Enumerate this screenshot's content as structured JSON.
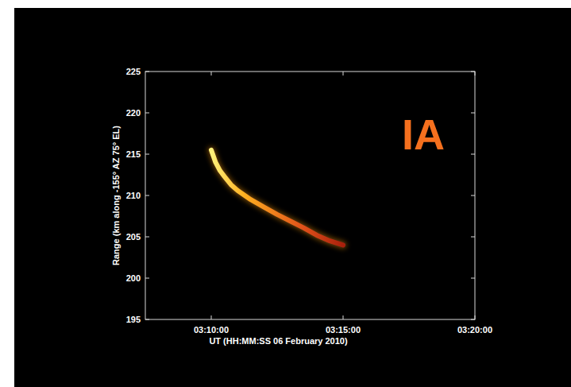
{
  "chart_data": {
    "type": "line",
    "annotation": "IA",
    "x_label": "UT (HH:MM:SS 06 February 2010)",
    "y_label": "Range (km along -155° AZ 75° EL)",
    "x": [
      "03:10:00",
      "03:10:10",
      "03:10:20",
      "03:10:30",
      "03:10:45",
      "03:11:00",
      "03:11:30",
      "03:12:00",
      "03:12:30",
      "03:13:00",
      "03:13:30",
      "03:14:00",
      "03:14:30",
      "03:15:00"
    ],
    "series": [
      {
        "name": "Range",
        "color": "#ff9a1a",
        "values": [
          215.5,
          214.0,
          213.0,
          212.3,
          211.3,
          210.6,
          209.5,
          208.6,
          207.7,
          206.9,
          206.1,
          205.2,
          204.5,
          204.0
        ]
      }
    ],
    "xlim": [
      "03:07:30",
      "03:20:00"
    ],
    "xticks": [
      "03:10:00",
      "03:15:00",
      "03:20:00"
    ],
    "ylim": [
      195,
      225
    ],
    "yticks": [
      195,
      200,
      205,
      210,
      215,
      220,
      225
    ],
    "grid": false
  }
}
